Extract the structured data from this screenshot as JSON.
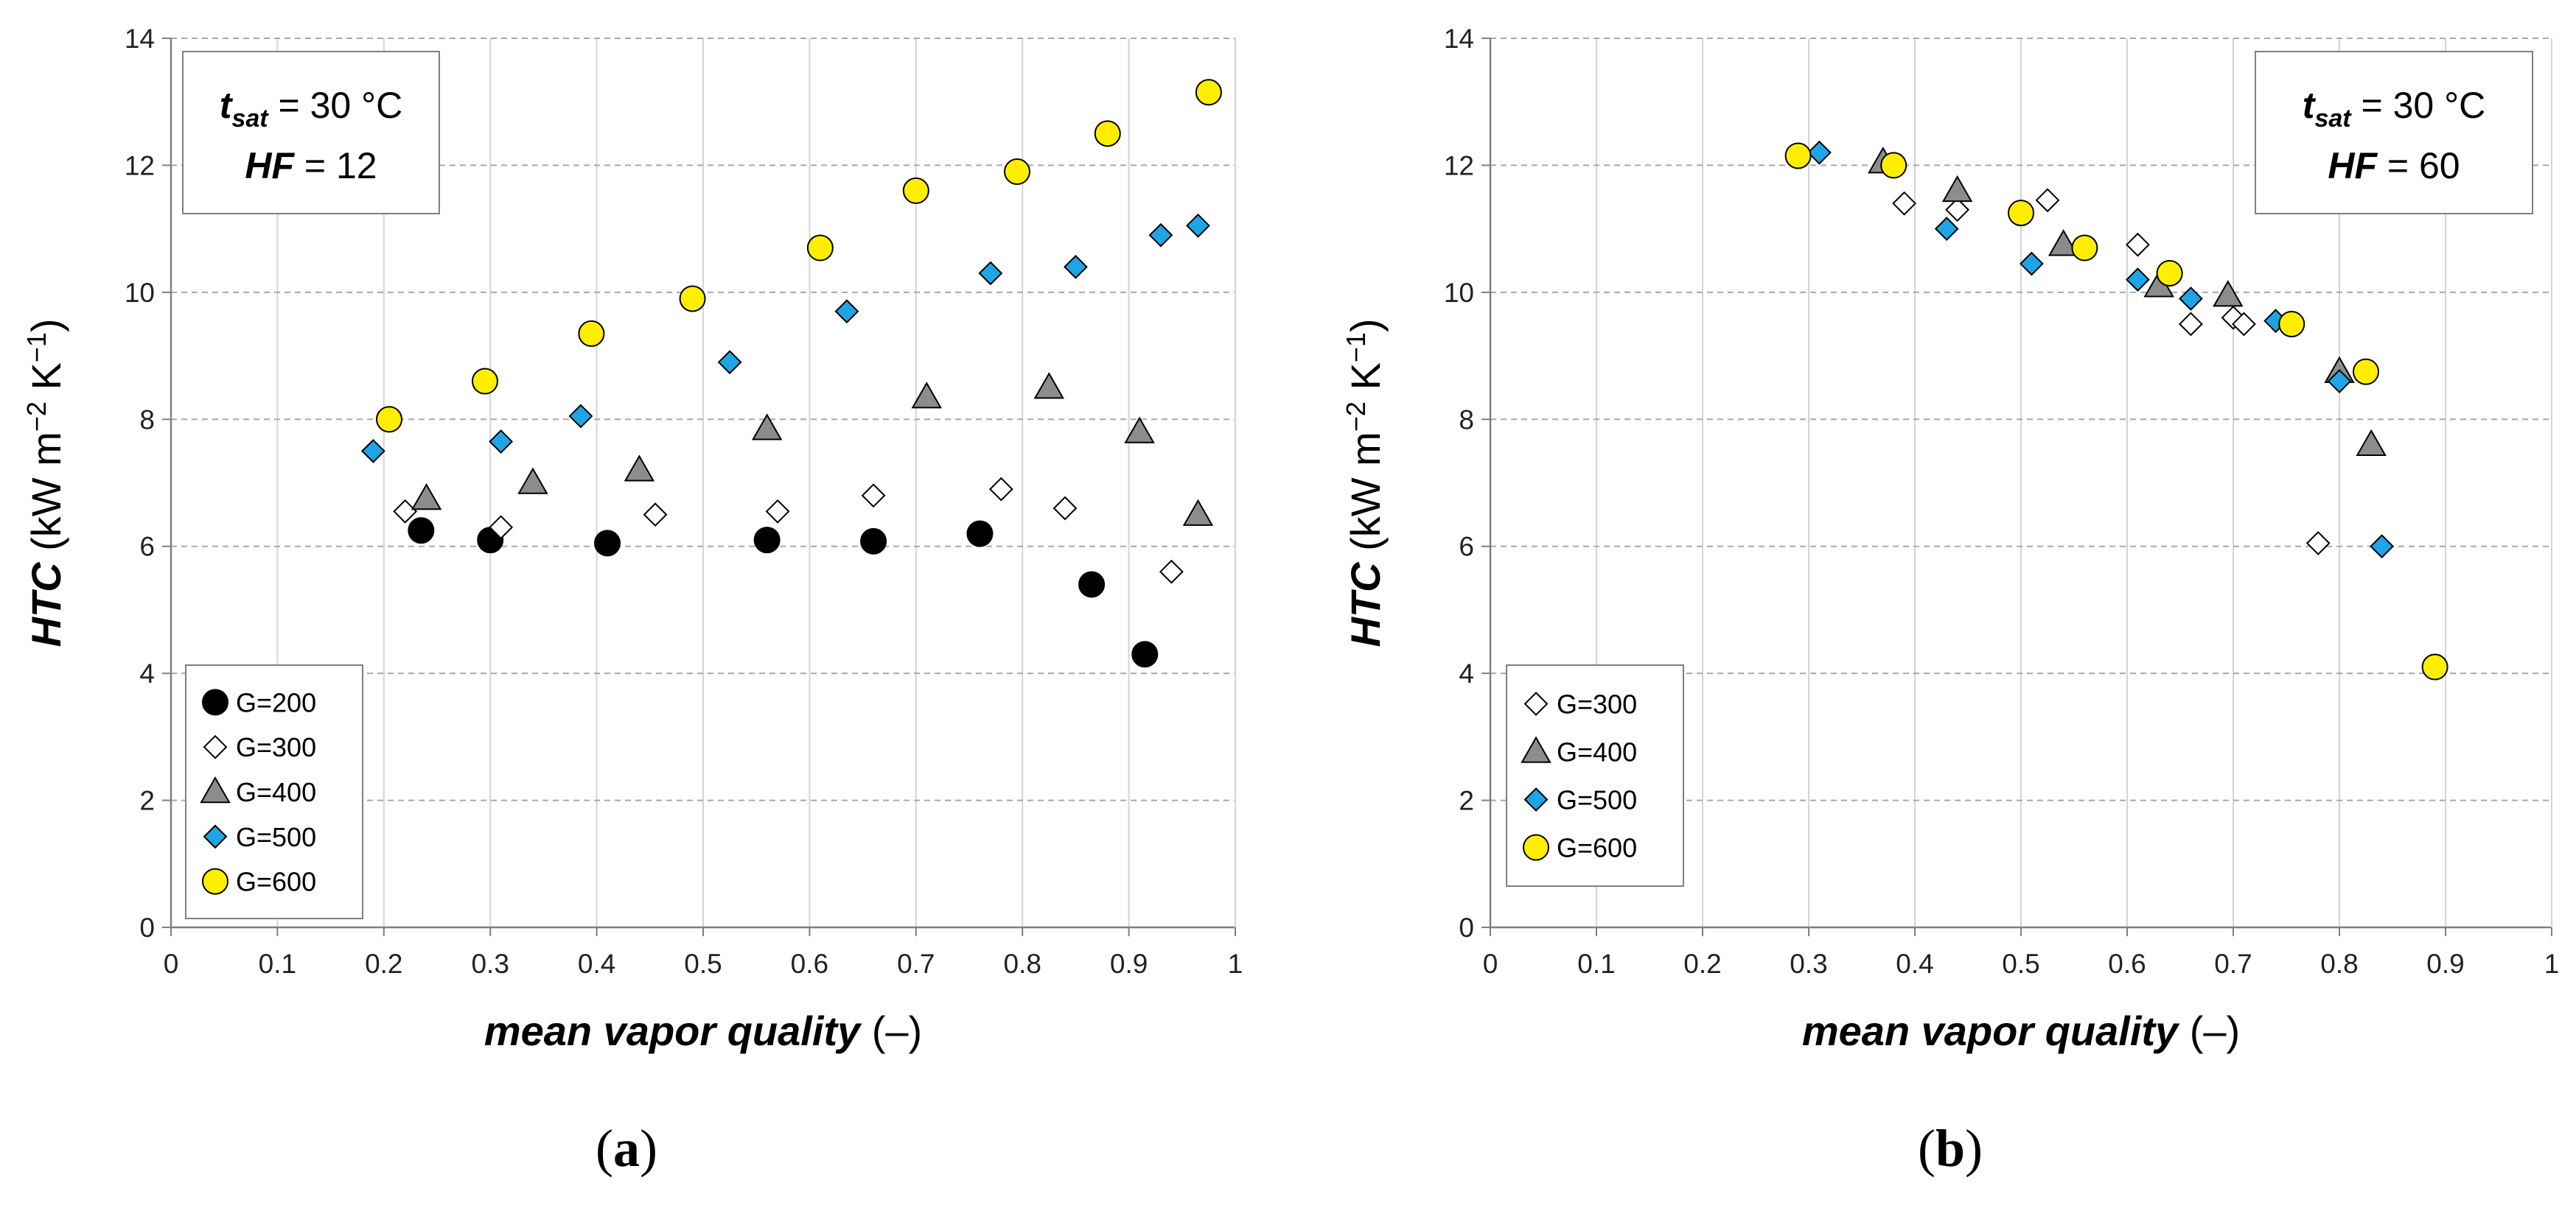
{
  "chart_data": [
    {
      "type": "scatter",
      "panel": "a",
      "panel_label": "a",
      "xlabel": "mean vapor quality",
      "xlabel_unit": "(–)",
      "ylabel": "HTC",
      "ylabel_unit": "(kW m",
      "ylabel_unit_exp1": "−2",
      "ylabel_unit_mid": " K",
      "ylabel_unit_exp2": "−1",
      "ylabel_unit_end": ")",
      "xlim": [
        0,
        1
      ],
      "ylim": [
        0,
        14
      ],
      "xticks": [
        "0",
        "0.1",
        "0.2",
        "0.3",
        "0.4",
        "0.5",
        "0.6",
        "0.7",
        "0.8",
        "0.9",
        "1"
      ],
      "yticks": [
        "0",
        "2",
        "4",
        "6",
        "8",
        "10",
        "12",
        "14"
      ],
      "annotation": {
        "line1_var": "t",
        "line1_sub": "sat",
        "line1_value": " = 30 °C",
        "line2_var": "HF",
        "line2_value": " = 12",
        "position": "top-left"
      },
      "legend_position": "bottom-left",
      "series": [
        {
          "name": "G=200",
          "marker": "circle",
          "color": "#000000",
          "points": [
            [
              0.235,
              6.25
            ],
            [
              0.3,
              6.1
            ],
            [
              0.41,
              6.05
            ],
            [
              0.56,
              6.1
            ],
            [
              0.66,
              6.08
            ],
            [
              0.76,
              6.2
            ],
            [
              0.865,
              5.4
            ],
            [
              0.915,
              4.3
            ]
          ]
        },
        {
          "name": "G=300",
          "marker": "diamond",
          "color": "#ffffff",
          "points": [
            [
              0.22,
              6.55
            ],
            [
              0.31,
              6.3
            ],
            [
              0.455,
              6.5
            ],
            [
              0.57,
              6.55
            ],
            [
              0.66,
              6.8
            ],
            [
              0.78,
              6.9
            ],
            [
              0.84,
              6.6
            ],
            [
              0.94,
              5.6
            ]
          ]
        },
        {
          "name": "G=400",
          "marker": "triangle",
          "color": "#8c8c8c",
          "points": [
            [
              0.24,
              6.75
            ],
            [
              0.34,
              7.0
            ],
            [
              0.44,
              7.2
            ],
            [
              0.56,
              7.85
            ],
            [
              0.71,
              8.35
            ],
            [
              0.825,
              8.5
            ],
            [
              0.91,
              7.8
            ],
            [
              0.965,
              6.5
            ]
          ]
        },
        {
          "name": "G=500",
          "marker": "diamond",
          "color": "#1ea5e6",
          "points": [
            [
              0.19,
              7.5
            ],
            [
              0.31,
              7.65
            ],
            [
              0.385,
              8.05
            ],
            [
              0.525,
              8.9
            ],
            [
              0.635,
              9.7
            ],
            [
              0.77,
              10.3
            ],
            [
              0.85,
              10.4
            ],
            [
              0.93,
              10.9
            ],
            [
              0.965,
              11.05
            ]
          ]
        },
        {
          "name": "G=600",
          "marker": "circle",
          "color": "#ffee00",
          "points": [
            [
              0.205,
              8.0
            ],
            [
              0.295,
              8.6
            ],
            [
              0.395,
              9.35
            ],
            [
              0.49,
              9.9
            ],
            [
              0.61,
              10.7
            ],
            [
              0.7,
              11.6
            ],
            [
              0.795,
              11.9
            ],
            [
              0.88,
              12.5
            ],
            [
              0.975,
              13.15
            ]
          ]
        }
      ]
    },
    {
      "type": "scatter",
      "panel": "b",
      "panel_label": "b",
      "xlabel": "mean vapor quality",
      "xlabel_unit": "(–)",
      "ylabel": "HTC",
      "ylabel_unit": "(kW m",
      "ylabel_unit_exp1": "−2",
      "ylabel_unit_mid": " K",
      "ylabel_unit_exp2": "−1",
      "ylabel_unit_end": ")",
      "xlim": [
        0,
        1
      ],
      "ylim": [
        0,
        14
      ],
      "xticks": [
        "0",
        "0.1",
        "0.2",
        "0.3",
        "0.4",
        "0.5",
        "0.6",
        "0.7",
        "0.8",
        "0.9",
        "1"
      ],
      "yticks": [
        "0",
        "2",
        "4",
        "6",
        "8",
        "10",
        "12",
        "14"
      ],
      "annotation": {
        "line1_var": "t",
        "line1_sub": "sat",
        "line1_value": " = 30 °C",
        "line2_var": "HF",
        "line2_value": " = 60",
        "position": "top-right"
      },
      "legend_position": "bottom-left",
      "series": [
        {
          "name": "G=300",
          "marker": "diamond",
          "color": "#ffffff",
          "points": [
            [
              0.39,
              11.4
            ],
            [
              0.44,
              11.3
            ],
            [
              0.525,
              11.45
            ],
            [
              0.61,
              10.75
            ],
            [
              0.66,
              9.5
            ],
            [
              0.7,
              9.6
            ],
            [
              0.71,
              9.5
            ],
            [
              0.78,
              6.05
            ]
          ]
        },
        {
          "name": "G=400",
          "marker": "triangle",
          "color": "#8c8c8c",
          "points": [
            [
              0.37,
              12.05
            ],
            [
              0.44,
              11.6
            ],
            [
              0.54,
              10.75
            ],
            [
              0.63,
              10.1
            ],
            [
              0.695,
              9.95
            ],
            [
              0.8,
              8.75
            ],
            [
              0.83,
              7.6
            ]
          ]
        },
        {
          "name": "G=500",
          "marker": "diamond",
          "color": "#1ea5e6",
          "points": [
            [
              0.31,
              12.2
            ],
            [
              0.43,
              11.0
            ],
            [
              0.51,
              10.45
            ],
            [
              0.61,
              10.2
            ],
            [
              0.66,
              9.9
            ],
            [
              0.74,
              9.55
            ],
            [
              0.8,
              8.6
            ],
            [
              0.84,
              6.0
            ]
          ]
        },
        {
          "name": "G=600",
          "marker": "circle",
          "color": "#ffee00",
          "points": [
            [
              0.29,
              12.15
            ],
            [
              0.38,
              12.0
            ],
            [
              0.5,
              11.25
            ],
            [
              0.56,
              10.7
            ],
            [
              0.64,
              10.3
            ],
            [
              0.755,
              9.5
            ],
            [
              0.825,
              8.75
            ],
            [
              0.89,
              4.1
            ]
          ]
        }
      ]
    }
  ]
}
